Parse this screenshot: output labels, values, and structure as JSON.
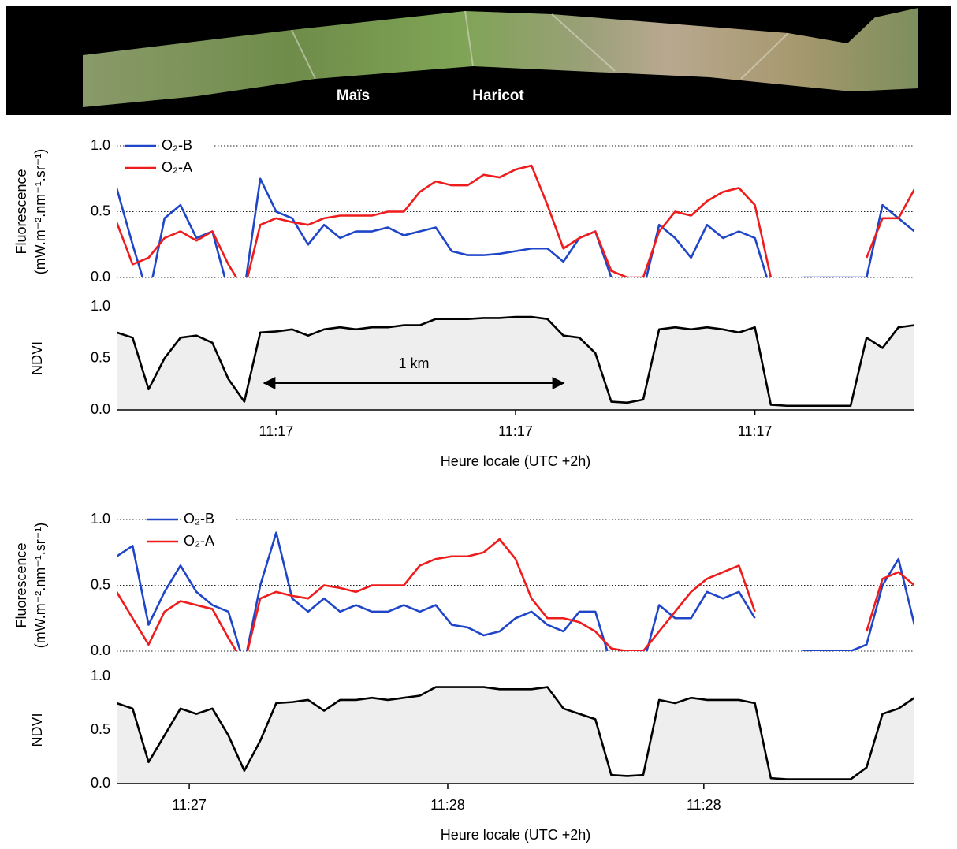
{
  "image": {
    "labels": [
      "Maïs",
      "Haricot"
    ]
  },
  "chart_data": [
    {
      "type": "line",
      "ylabel": [
        "Fluorescence",
        "(mW.m⁻².nm⁻¹.sr⁻¹)"
      ],
      "legend": "upper left",
      "grid": true,
      "xlim": [
        0,
        100
      ],
      "ylim": [
        0,
        1
      ],
      "yticks": [
        {
          "value": 0,
          "label": "0.0"
        },
        {
          "value": 0.5,
          "label": "0.5"
        },
        {
          "value": 1,
          "label": "1.0"
        }
      ],
      "x": [
        0,
        2,
        4,
        6,
        8,
        10,
        12,
        14,
        16,
        18,
        20,
        22,
        24,
        26,
        28,
        30,
        32,
        34,
        36,
        38,
        40,
        42,
        44,
        46,
        48,
        50,
        52,
        54,
        56,
        58,
        60,
        62,
        64,
        66,
        68,
        70,
        72,
        74,
        76,
        78,
        80,
        82,
        84,
        86,
        88,
        90,
        92,
        94,
        96,
        98,
        100
      ],
      "series": [
        {
          "name": "O₂-B",
          "color": "#1f45c8",
          "values": [
            0.68,
            0.25,
            -0.15,
            0.45,
            0.55,
            0.3,
            0.35,
            -0.1,
            -0.1,
            0.75,
            0.5,
            0.45,
            0.25,
            0.4,
            0.3,
            0.35,
            0.35,
            0.38,
            0.32,
            0.35,
            0.38,
            0.2,
            0.17,
            0.17,
            0.18,
            0.2,
            0.22,
            0.22,
            0.12,
            0.3,
            0.35,
            0,
            -0.1,
            -0.1,
            0.4,
            0.3,
            0.15,
            0.4,
            0.3,
            0.35,
            0.3,
            -0.1,
            null,
            0,
            0,
            0,
            0,
            0,
            0.55,
            0.45,
            0.35
          ]
        },
        {
          "name": "O₂-A",
          "color": "#ee1c1c",
          "values": [
            0.42,
            0.1,
            0.15,
            0.3,
            0.35,
            0.28,
            0.35,
            0.1,
            -0.1,
            0.4,
            0.45,
            0.42,
            0.4,
            0.45,
            0.47,
            0.47,
            0.47,
            0.5,
            0.5,
            0.65,
            0.73,
            0.7,
            0.7,
            0.78,
            0.76,
            0.82,
            0.85,
            0.55,
            0.22,
            0.3,
            0.35,
            0.05,
            0,
            0,
            0.35,
            0.5,
            0.47,
            0.58,
            0.65,
            0.68,
            0.55,
            0,
            null,
            null,
            null,
            null,
            null,
            0.15,
            0.45,
            0.45,
            0.67
          ]
        }
      ]
    },
    {
      "type": "area",
      "ylabel": "NDVI",
      "xlabel": "Heure locale (UTC +2h)",
      "annotation": "1 km",
      "fill": "#eeeeee",
      "xlim": [
        0,
        100
      ],
      "ylim": [
        0,
        1
      ],
      "yticks": [
        {
          "value": 0,
          "label": "0.0"
        },
        {
          "value": 0.5,
          "label": "0.5"
        },
        {
          "value": 1,
          "label": "1.0"
        }
      ],
      "xticks": [
        {
          "value": 20,
          "label": "11:17"
        },
        {
          "value": 50,
          "label": "11:17"
        },
        {
          "value": 80,
          "label": "11:17"
        }
      ],
      "x": [
        0,
        2,
        4,
        6,
        8,
        10,
        12,
        14,
        16,
        18,
        20,
        22,
        24,
        26,
        28,
        30,
        32,
        34,
        36,
        38,
        40,
        42,
        44,
        46,
        48,
        50,
        52,
        54,
        56,
        58,
        60,
        62,
        64,
        66,
        68,
        70,
        72,
        74,
        76,
        78,
        80,
        82,
        84,
        86,
        88,
        90,
        92,
        94,
        96,
        98,
        100
      ],
      "series": [
        {
          "color": "#000000",
          "values": [
            0.75,
            0.7,
            0.2,
            0.5,
            0.7,
            0.72,
            0.65,
            0.3,
            0.08,
            0.75,
            0.76,
            0.78,
            0.72,
            0.78,
            0.8,
            0.78,
            0.8,
            0.8,
            0.82,
            0.82,
            0.88,
            0.88,
            0.88,
            0.89,
            0.89,
            0.9,
            0.9,
            0.88,
            0.72,
            0.7,
            0.55,
            0.08,
            0.07,
            0.1,
            0.78,
            0.8,
            0.78,
            0.8,
            0.78,
            0.75,
            0.8,
            0.05,
            0.04,
            0.04,
            0.04,
            0.04,
            0.04,
            0.7,
            0.6,
            0.8,
            0.82
          ]
        }
      ]
    },
    {
      "type": "line",
      "ylabel": [
        "Fluorescence",
        "(mW.m⁻².nm⁻¹.sr⁻¹)"
      ],
      "legend": "upper left",
      "grid": true,
      "xlim": [
        0,
        100
      ],
      "ylim": [
        0,
        1
      ],
      "yticks": [
        {
          "value": 0,
          "label": "0.0"
        },
        {
          "value": 0.5,
          "label": "0.5"
        },
        {
          "value": 1,
          "label": "1.0"
        }
      ],
      "x": [
        0,
        2,
        4,
        6,
        8,
        10,
        12,
        14,
        16,
        18,
        20,
        22,
        24,
        26,
        28,
        30,
        32,
        34,
        36,
        38,
        40,
        42,
        44,
        46,
        48,
        50,
        52,
        54,
        56,
        58,
        60,
        62,
        64,
        66,
        68,
        70,
        72,
        74,
        76,
        78,
        80,
        82,
        84,
        86,
        88,
        90,
        92,
        94,
        96,
        98,
        100
      ],
      "series": [
        {
          "name": "O₂-B",
          "color": "#1f45c8",
          "values": [
            0.72,
            0.8,
            0.2,
            0.45,
            0.65,
            0.45,
            0.35,
            0.3,
            -0.1,
            0.5,
            0.9,
            0.4,
            0.3,
            0.4,
            0.3,
            0.35,
            0.3,
            0.3,
            0.35,
            0.3,
            0.35,
            0.2,
            0.18,
            0.12,
            0.15,
            0.25,
            0.3,
            0.2,
            0.15,
            0.3,
            0.3,
            -0.1,
            -0.1,
            -0.1,
            0.35,
            0.25,
            0.25,
            0.45,
            0.4,
            0.45,
            0.25,
            null,
            null,
            0,
            0,
            0,
            0,
            0.05,
            0.5,
            0.7,
            0.2
          ]
        },
        {
          "name": "O₂-A",
          "color": "#ee1c1c",
          "values": [
            0.45,
            0.25,
            0.05,
            0.3,
            0.38,
            0.35,
            0.32,
            0.1,
            -0.1,
            0.4,
            0.45,
            0.42,
            0.4,
            0.5,
            0.48,
            0.45,
            0.5,
            0.5,
            0.5,
            0.65,
            0.7,
            0.72,
            0.72,
            0.75,
            0.85,
            0.7,
            0.4,
            0.25,
            0.25,
            0.22,
            0.15,
            0.02,
            0,
            0,
            0.15,
            0.3,
            0.45,
            0.55,
            0.6,
            0.65,
            0.3,
            null,
            null,
            null,
            null,
            null,
            null,
            0.15,
            0.55,
            0.6,
            0.5
          ]
        }
      ]
    },
    {
      "type": "area",
      "ylabel": "NDVI",
      "xlabel": "Heure locale (UTC +2h)",
      "fill": "#eeeeee",
      "xlim": [
        0,
        100
      ],
      "ylim": [
        0,
        1
      ],
      "yticks": [
        {
          "value": 0,
          "label": "0.0"
        },
        {
          "value": 0.5,
          "label": "0.5"
        },
        {
          "value": 1,
          "label": "1.0"
        }
      ],
      "xticks": [
        {
          "value": 9.1,
          "label": "11:27"
        },
        {
          "value": 41.5,
          "label": "11:28"
        },
        {
          "value": 73.6,
          "label": "11:28"
        }
      ],
      "x": [
        0,
        2,
        4,
        6,
        8,
        10,
        12,
        14,
        16,
        18,
        20,
        22,
        24,
        26,
        28,
        30,
        32,
        34,
        36,
        38,
        40,
        42,
        44,
        46,
        48,
        50,
        52,
        54,
        56,
        58,
        60,
        62,
        64,
        66,
        68,
        70,
        72,
        74,
        76,
        78,
        80,
        82,
        84,
        86,
        88,
        90,
        92,
        94,
        96,
        98,
        100
      ],
      "series": [
        {
          "color": "#000000",
          "values": [
            0.75,
            0.7,
            0.2,
            0.45,
            0.7,
            0.65,
            0.7,
            0.45,
            0.12,
            0.4,
            0.75,
            0.76,
            0.78,
            0.68,
            0.78,
            0.78,
            0.8,
            0.78,
            0.8,
            0.82,
            0.9,
            0.9,
            0.9,
            0.9,
            0.88,
            0.88,
            0.88,
            0.9,
            0.7,
            0.65,
            0.6,
            0.08,
            0.07,
            0.08,
            0.78,
            0.75,
            0.8,
            0.78,
            0.78,
            0.78,
            0.75,
            0.05,
            0.04,
            0.04,
            0.04,
            0.04,
            0.04,
            0.15,
            0.65,
            0.7,
            0.8
          ]
        }
      ]
    }
  ]
}
